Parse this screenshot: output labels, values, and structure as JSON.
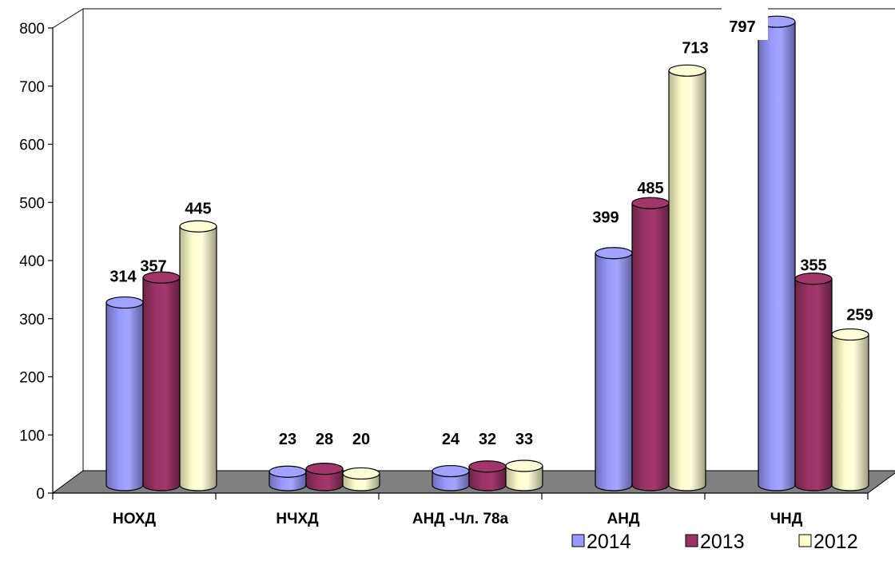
{
  "chart_data": {
    "type": "bar",
    "title": "",
    "xlabel": "",
    "ylabel": "",
    "categories": [
      "НОХД",
      "НЧХД",
      "АНД -Чл. 78а",
      "АНД",
      "ЧНД"
    ],
    "series": [
      {
        "name": "2014",
        "values": [
          314,
          23,
          24,
          399,
          797
        ],
        "color": "#9999ff",
        "label_texts": [
          "314",
          "23",
          "24",
          "399",
          "797"
        ]
      },
      {
        "name": "2013",
        "values": [
          357,
          28,
          32,
          485,
          355
        ],
        "color": "#993366",
        "label_texts": [
          "357",
          "28",
          "32",
          "485",
          "355"
        ]
      },
      {
        "name": "2012",
        "values": [
          445,
          20,
          33,
          713,
          259
        ],
        "color": "#ffffcc",
        "label_texts": [
          "445",
          "20",
          "33",
          "713",
          "259"
        ]
      }
    ],
    "ylim": [
      0,
      800
    ],
    "yticks": [
      "0",
      "100",
      "200",
      "300",
      "400",
      "500",
      "600",
      "700",
      "800"
    ],
    "grid": false,
    "legend_position": "bottom-right",
    "floor_color": "#808080"
  }
}
